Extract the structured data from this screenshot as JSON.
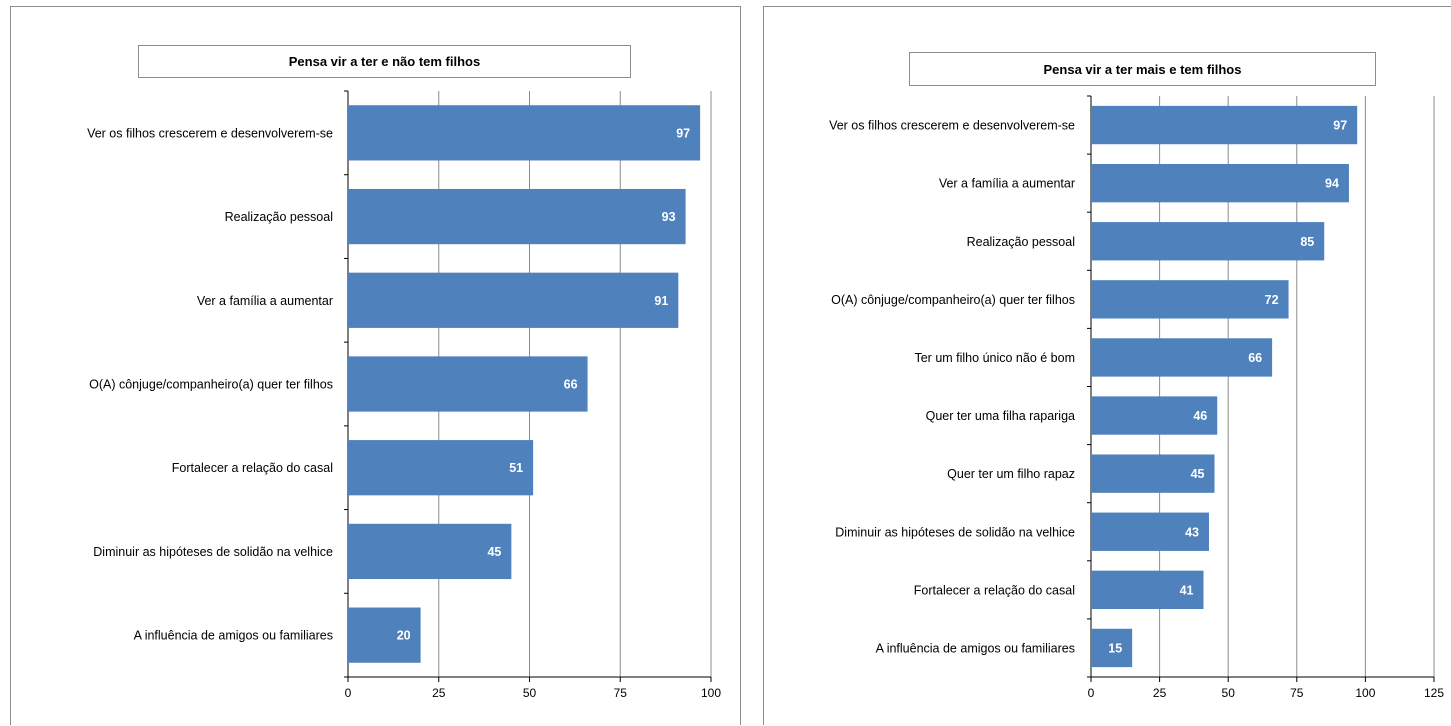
{
  "chart_data": [
    {
      "type": "bar",
      "orientation": "horizontal",
      "title": "Pensa vir a ter e não tem filhos",
      "categories": [
        "Ver os filhos crescerem e desenvolverem-se",
        "Realização pessoal",
        "Ver a família a aumentar",
        "O(A) cônjuge/companheiro(a)  quer ter filhos",
        "Fortalecer a relação do casal",
        "Diminuir as hipóteses de solidão na velhice",
        "A influência  de amigos ou familiares"
      ],
      "values": [
        97,
        93,
        91,
        66,
        51,
        45,
        20
      ],
      "xlim": [
        0,
        100
      ],
      "xticks": [
        "0",
        "25",
        "50",
        "75",
        "100"
      ],
      "grid": "vertical",
      "bar_color": "#4f81bd"
    },
    {
      "type": "bar",
      "orientation": "horizontal",
      "title": "Pensa vir a ter mais e tem filhos",
      "categories": [
        "Ver os filhos crescerem e desenvolverem-se",
        "Ver a família  a aumentar",
        "Realização pessoal",
        "O(A) cônjuge/companheiro(a)  quer ter filhos",
        "Ter um filho único não é bom",
        "Quer ter uma filha rapariga",
        "Quer ter um filho rapaz",
        "Diminuir as hipóteses de solidão na velhice",
        "Fortalecer a relação do casal",
        "A influência  de amigos ou familiares"
      ],
      "values": [
        97,
        94,
        85,
        72,
        66,
        46,
        45,
        43,
        41,
        15
      ],
      "xlim": [
        0,
        125
      ],
      "xticks": [
        "0",
        "25",
        "50",
        "75",
        "100",
        "125"
      ],
      "grid": "vertical",
      "bar_color": "#4f81bd"
    }
  ]
}
